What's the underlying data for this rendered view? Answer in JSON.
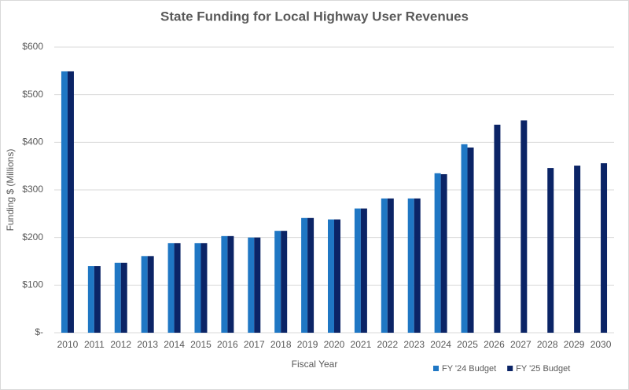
{
  "chart_data": {
    "type": "bar",
    "title": "State Funding for Local Highway User Revenues",
    "x_label": "Fiscal Year",
    "y_label": "Funding $ (Millions)",
    "categories": [
      "2010",
      "2011",
      "2012",
      "2013",
      "2014",
      "2015",
      "2016",
      "2017",
      "2018",
      "2019",
      "2020",
      "2021",
      "2022",
      "2023",
      "2024",
      "2025",
      "2026",
      "2027",
      "2028",
      "2029",
      "2030"
    ],
    "series": [
      {
        "name": "FY '24 Budget",
        "color": "#1f77c4",
        "values": [
          549,
          140,
          147,
          161,
          188,
          188,
          203,
          200,
          214,
          241,
          238,
          261,
          282,
          282,
          335,
          396,
          null,
          null,
          null,
          null,
          null
        ]
      },
      {
        "name": "FY '25 Budget",
        "color": "#0b2466",
        "values": [
          549,
          140,
          147,
          161,
          188,
          188,
          203,
          200,
          214,
          241,
          238,
          261,
          282,
          282,
          333,
          389,
          437,
          446,
          346,
          351,
          356
        ]
      }
    ],
    "ylim": [
      0,
      600
    ],
    "yticks": [
      {
        "value": 0,
        "label": "$-"
      },
      {
        "value": 100,
        "label": "$100"
      },
      {
        "value": 200,
        "label": "$200"
      },
      {
        "value": 300,
        "label": "$300"
      },
      {
        "value": 400,
        "label": "$400"
      },
      {
        "value": 500,
        "label": "$500"
      },
      {
        "value": 600,
        "label": "$600"
      }
    ],
    "grid": true,
    "legend": "bottom-right"
  }
}
